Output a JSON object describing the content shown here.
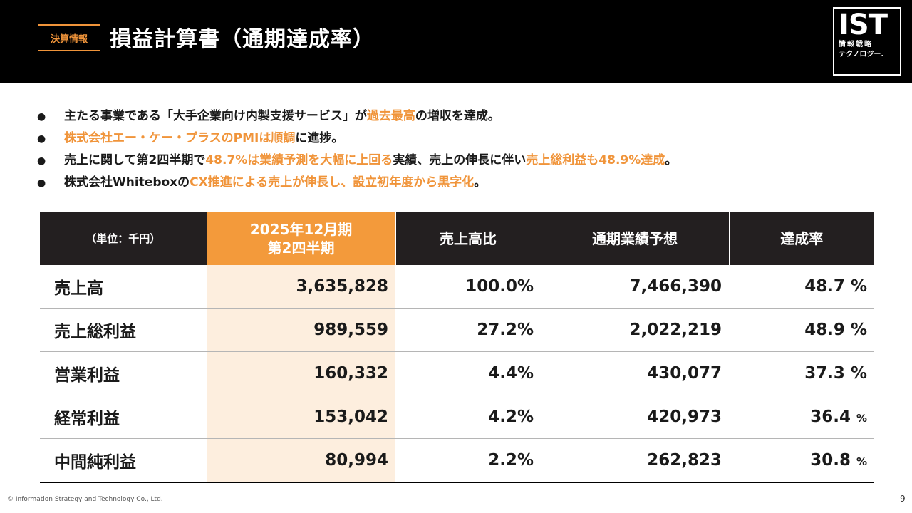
{
  "header": {
    "tag": "決算情報",
    "title": "損益計算書（通期達成率）"
  },
  "logo": {
    "main": "IST",
    "sub1": "情報戦略",
    "sub2": "テクノロジー."
  },
  "bullets": [
    [
      {
        "t": "主たる事業である「大手企業向け内製支援サービス」が",
        "h": false
      },
      {
        "t": "過去最高",
        "h": true
      },
      {
        "t": "の増収を達成。",
        "h": false
      }
    ],
    [
      {
        "t": "株式会社エー・ケー・プラスのPMIは順調",
        "h": true
      },
      {
        "t": "に進捗。",
        "h": false
      }
    ],
    [
      {
        "t": "売上に関して第2四半期で",
        "h": false
      },
      {
        "t": "48.7%は業績予測を大幅に上回る",
        "h": true
      },
      {
        "t": "実績、売上の伸長に伴い",
        "h": false
      },
      {
        "t": "売上総利益も48.9%達成",
        "h": true
      },
      {
        "t": "。",
        "h": false
      }
    ],
    [
      {
        "t": "株式会社Whiteboxの",
        "h": false
      },
      {
        "t": "CX推進による売上が伸長し、設立初年度から黒字化",
        "h": true
      },
      {
        "t": "。",
        "h": false
      }
    ]
  ],
  "table": {
    "headers": {
      "unit": "（単位：千円）",
      "period_line1": "2025年12月期",
      "period_line2": "第2四半期",
      "ratio": "売上高比",
      "forecast": "通期業績予想",
      "achievement": "達成率"
    },
    "rows": [
      {
        "label": "売上高",
        "value": "3,635,828",
        "ratio": "100.0%",
        "forecast": "7,466,390",
        "rate": "48.7",
        "unit": "%"
      },
      {
        "label": "売上総利益",
        "value": "989,559",
        "ratio": "27.2%",
        "forecast": "2,022,219",
        "rate": "48.9",
        "unit": "%"
      },
      {
        "label": "営業利益",
        "value": "160,332",
        "ratio": "4.4%",
        "forecast": "430,077",
        "rate": "37.3",
        "unit": "%"
      },
      {
        "label": "経常利益",
        "value": "153,042",
        "ratio": "4.2%",
        "forecast": "420,973",
        "rate": "36.4",
        "unit": "%"
      },
      {
        "label": "中間純利益",
        "value": "80,994",
        "ratio": "2.2%",
        "forecast": "262,823",
        "rate": "30.8",
        "unit": "%"
      }
    ]
  },
  "footer": {
    "copyright": "© Information Strategy and Technology Co., Ltd.",
    "page": "9"
  },
  "colors": {
    "accent": "#f0943a",
    "header_bg": "#000000",
    "table_header_bg": "#231f20",
    "highlight_column_bg": "#fdeede"
  }
}
